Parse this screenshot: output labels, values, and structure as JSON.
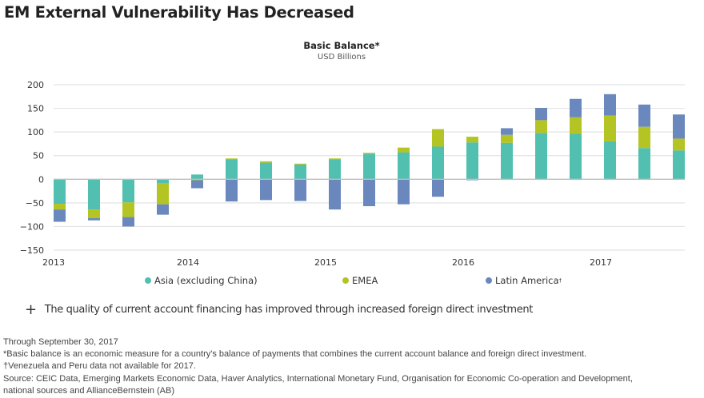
{
  "page": {
    "title": "EM External Vulnerability Has Decreased",
    "note_icon": "plus-icon",
    "note": "The quality of current account financing has improved through increased foreign direct investment",
    "footnotes": [
      "Through September 30, 2017",
      "*Basic balance is an economic measure for a country's balance of payments that combines the current account balance and foreign direct investment.",
      "†Venezuela and Peru data not available for 2017.",
      "Source: CEIC Data, Emerging Markets Economic Data, Haver Analytics, International Monetary Fund, Organisation for Economic Co-operation and Development,",
      "national sources and AllianceBernstein (AB)"
    ]
  },
  "chart_data": {
    "type": "bar",
    "stacked": true,
    "title": "Basic Balance*",
    "subtitle": "USD Billions",
    "xlabel": "",
    "ylabel": "",
    "ylim": [
      -150,
      200
    ],
    "yticks": [
      200,
      150,
      100,
      50,
      0,
      -50,
      -100,
      -150
    ],
    "ytick_labels": [
      "200",
      "150",
      "100",
      "50",
      "0",
      "−50",
      "−100",
      "−150"
    ],
    "xtick_labels": [
      "2013",
      "2014",
      "2015",
      "2016",
      "2017"
    ],
    "xtick_positions": [
      0,
      4,
      8,
      12,
      16
    ],
    "grid": true,
    "legend_position": "bottom",
    "categories": [
      "Q1 2013",
      "Q2 2013",
      "Q3 2013",
      "Q4 2013",
      "Q1 2014",
      "Q2 2014",
      "Q3 2014",
      "Q4 2014",
      "Q1 2015",
      "Q2 2015",
      "Q3 2015",
      "Q4 2015",
      "Q1 2016",
      "Q2 2016",
      "Q3 2016",
      "Q4 2016",
      "Q1 2017",
      "Q2 2017",
      "Q3 2017"
    ],
    "series": [
      {
        "name": "Asia (excluding China)",
        "color": "#52c0b0",
        "values": [
          -52,
          -64,
          -49,
          -8,
          10,
          42,
          35,
          31,
          42,
          54,
          57,
          69,
          78,
          77,
          98,
          96,
          80,
          66,
          61
        ]
      },
      {
        "name": "EMEA",
        "color": "#b4c423",
        "values": [
          -12,
          -18,
          -31,
          -45,
          -2,
          2,
          3,
          2,
          2,
          2,
          10,
          37,
          12,
          17,
          27,
          35,
          55,
          45,
          25
        ]
      },
      {
        "name": "Latin America",
        "sup": "†",
        "color": "#6a88bd",
        "values": [
          -26,
          -5,
          -20,
          -22,
          -17,
          -47,
          -44,
          -46,
          -64,
          -57,
          -53,
          -37,
          -2,
          14,
          26,
          39,
          45,
          47,
          51
        ]
      }
    ]
  }
}
